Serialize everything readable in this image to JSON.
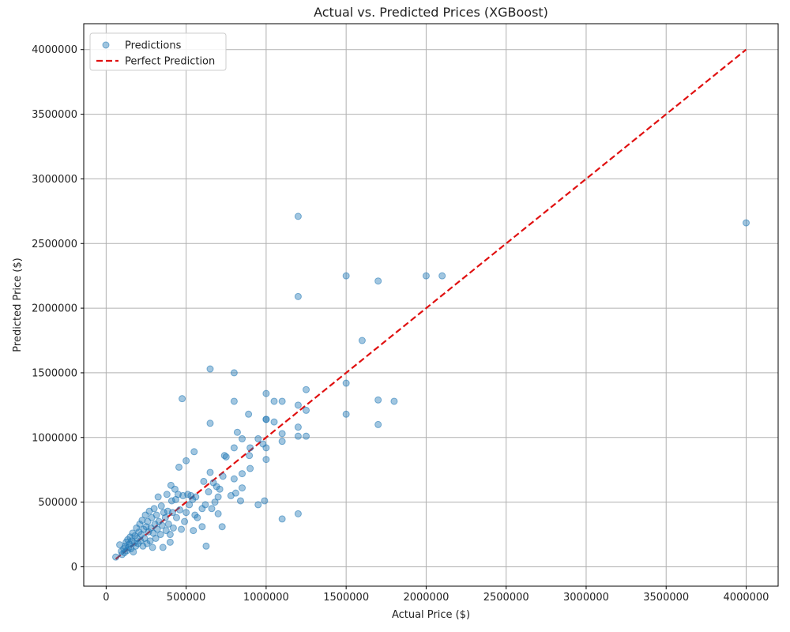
{
  "chart_data": {
    "type": "scatter",
    "title": "Actual vs. Predicted Prices (XGBoost)",
    "xlabel": "Actual Price ($)",
    "ylabel": "Predicted Price ($)",
    "xlim": [
      -140000,
      4200000
    ],
    "ylim": [
      -150000,
      4200000
    ],
    "xticks": [
      0,
      500000,
      1000000,
      1500000,
      2000000,
      2500000,
      3000000,
      3500000,
      4000000
    ],
    "yticks": [
      0,
      500000,
      1000000,
      1500000,
      2000000,
      2500000,
      3000000,
      3500000,
      4000000
    ],
    "xtick_labels": [
      "0",
      "500000",
      "1000000",
      "1500000",
      "2000000",
      "2500000",
      "3000000",
      "3500000",
      "4000000"
    ],
    "ytick_labels": [
      "0",
      "500000",
      "1000000",
      "1500000",
      "2000000",
      "2500000",
      "3000000",
      "3500000",
      "4000000"
    ],
    "grid": true,
    "legend_position": "top-left",
    "series": [
      {
        "name": "Predictions",
        "kind": "scatter",
        "color": "#1f77b4",
        "points": [
          [
            60000,
            75000
          ],
          [
            85000,
            170000
          ],
          [
            95000,
            120000
          ],
          [
            100000,
            95000
          ],
          [
            110000,
            140000
          ],
          [
            115000,
            110000
          ],
          [
            120000,
            160000
          ],
          [
            125000,
            190000
          ],
          [
            130000,
            125000
          ],
          [
            135000,
            210000
          ],
          [
            140000,
            150000
          ],
          [
            145000,
            175000
          ],
          [
            150000,
            230000
          ],
          [
            155000,
            140000
          ],
          [
            160000,
            200000
          ],
          [
            165000,
            260000
          ],
          [
            170000,
            115000
          ],
          [
            175000,
            185000
          ],
          [
            180000,
            240000
          ],
          [
            185000,
            160000
          ],
          [
            190000,
            300000
          ],
          [
            195000,
            220000
          ],
          [
            200000,
            180000
          ],
          [
            205000,
            270000
          ],
          [
            210000,
            330000
          ],
          [
            215000,
            200000
          ],
          [
            220000,
            250000
          ],
          [
            225000,
            360000
          ],
          [
            230000,
            160000
          ],
          [
            235000,
            290000
          ],
          [
            240000,
            220000
          ],
          [
            245000,
            400000
          ],
          [
            250000,
            310000
          ],
          [
            255000,
            180000
          ],
          [
            260000,
            350000
          ],
          [
            265000,
            270000
          ],
          [
            270000,
            430000
          ],
          [
            275000,
            200000
          ],
          [
            280000,
            300000
          ],
          [
            285000,
            380000
          ],
          [
            290000,
            150000
          ],
          [
            295000,
            260000
          ],
          [
            300000,
            450000
          ],
          [
            305000,
            330000
          ],
          [
            310000,
            220000
          ],
          [
            315000,
            400000
          ],
          [
            320000,
            290000
          ],
          [
            325000,
            540000
          ],
          [
            330000,
            350000
          ],
          [
            340000,
            250000
          ],
          [
            345000,
            470000
          ],
          [
            350000,
            320000
          ],
          [
            355000,
            150000
          ],
          [
            360000,
            420000
          ],
          [
            370000,
            380000
          ],
          [
            375000,
            280000
          ],
          [
            380000,
            560000
          ],
          [
            385000,
            430000
          ],
          [
            390000,
            330000
          ],
          [
            400000,
            250000
          ],
          [
            400000,
            190000
          ],
          [
            405000,
            630000
          ],
          [
            410000,
            510000
          ],
          [
            415000,
            420000
          ],
          [
            420000,
            300000
          ],
          [
            430000,
            600000
          ],
          [
            435000,
            520000
          ],
          [
            440000,
            380000
          ],
          [
            450000,
            560000
          ],
          [
            455000,
            770000
          ],
          [
            460000,
            440000
          ],
          [
            470000,
            290000
          ],
          [
            475000,
            1300000
          ],
          [
            480000,
            550000
          ],
          [
            490000,
            350000
          ],
          [
            500000,
            820000
          ],
          [
            500000,
            420000
          ],
          [
            510000,
            560000
          ],
          [
            520000,
            480000
          ],
          [
            530000,
            550000
          ],
          [
            540000,
            520000
          ],
          [
            545000,
            280000
          ],
          [
            550000,
            890000
          ],
          [
            555000,
            400000
          ],
          [
            560000,
            540000
          ],
          [
            570000,
            380000
          ],
          [
            600000,
            450000
          ],
          [
            600000,
            310000
          ],
          [
            610000,
            660000
          ],
          [
            620000,
            480000
          ],
          [
            625000,
            160000
          ],
          [
            640000,
            580000
          ],
          [
            650000,
            1530000
          ],
          [
            650000,
            1110000
          ],
          [
            650000,
            730000
          ],
          [
            660000,
            450000
          ],
          [
            670000,
            650000
          ],
          [
            680000,
            500000
          ],
          [
            690000,
            620000
          ],
          [
            700000,
            410000
          ],
          [
            700000,
            540000
          ],
          [
            710000,
            600000
          ],
          [
            725000,
            310000
          ],
          [
            730000,
            700000
          ],
          [
            740000,
            860000
          ],
          [
            750000,
            850000
          ],
          [
            780000,
            550000
          ],
          [
            800000,
            1500000
          ],
          [
            800000,
            1280000
          ],
          [
            800000,
            920000
          ],
          [
            800000,
            680000
          ],
          [
            810000,
            570000
          ],
          [
            820000,
            1040000
          ],
          [
            840000,
            510000
          ],
          [
            850000,
            990000
          ],
          [
            850000,
            720000
          ],
          [
            850000,
            610000
          ],
          [
            890000,
            1180000
          ],
          [
            895000,
            860000
          ],
          [
            900000,
            760000
          ],
          [
            900000,
            920000
          ],
          [
            950000,
            480000
          ],
          [
            950000,
            990000
          ],
          [
            980000,
            950000
          ],
          [
            990000,
            510000
          ],
          [
            1000000,
            1340000
          ],
          [
            1000000,
            1140000
          ],
          [
            1000000,
            1140000
          ],
          [
            1000000,
            920000
          ],
          [
            1000000,
            830000
          ],
          [
            1050000,
            1280000
          ],
          [
            1050000,
            1120000
          ],
          [
            1100000,
            1280000
          ],
          [
            1100000,
            1030000
          ],
          [
            1100000,
            970000
          ],
          [
            1100000,
            370000
          ],
          [
            1200000,
            2710000
          ],
          [
            1200000,
            2090000
          ],
          [
            1200000,
            1250000
          ],
          [
            1200000,
            1080000
          ],
          [
            1200000,
            1010000
          ],
          [
            1200000,
            410000
          ],
          [
            1250000,
            1370000
          ],
          [
            1250000,
            1210000
          ],
          [
            1250000,
            1010000
          ],
          [
            1500000,
            2250000
          ],
          [
            1500000,
            1420000
          ],
          [
            1500000,
            1180000
          ],
          [
            1600000,
            1750000
          ],
          [
            1700000,
            2210000
          ],
          [
            1700000,
            1290000
          ],
          [
            1700000,
            1100000
          ],
          [
            1800000,
            1280000
          ],
          [
            2000000,
            2250000
          ],
          [
            2100000,
            2250000
          ],
          [
            4000000,
            2660000
          ]
        ]
      },
      {
        "name": "Perfect Prediction",
        "kind": "line",
        "color": "#e01010",
        "dash": "dashed",
        "x": [
          60000,
          4000000
        ],
        "y": [
          60000,
          4000000
        ]
      }
    ]
  }
}
